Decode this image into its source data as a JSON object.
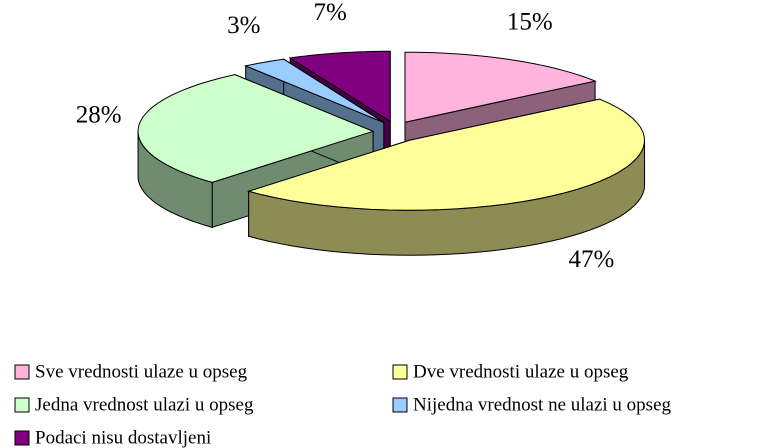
{
  "chart_data": {
    "type": "pie",
    "categories": [
      "Sve vrednosti ulaze u opseg",
      "Dve vrednosti ulaze u opseg",
      "Jedna vrednost ulazi u opseg",
      "Nijedna vrednost ne ulazi u opseg",
      "Podaci nisu dostavljeni"
    ],
    "values": [
      15,
      47,
      28,
      3,
      7
    ],
    "value_labels": [
      "15%",
      "47%",
      "28%",
      "3%",
      "7%"
    ],
    "colors": [
      "#ffb3dd",
      "#ffff99",
      "#ccffcc",
      "#99ccff",
      "#800080"
    ]
  }
}
